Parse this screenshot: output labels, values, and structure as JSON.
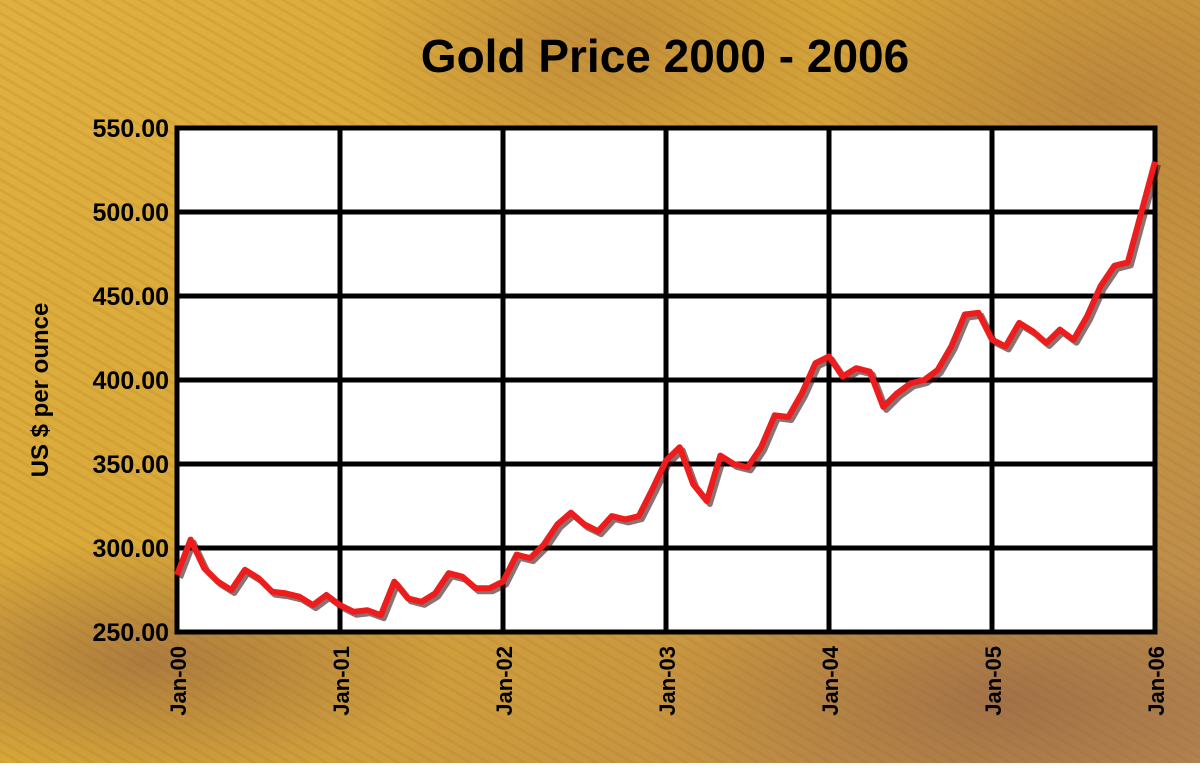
{
  "chart_data": {
    "type": "line",
    "title": "Gold Price 2000 - 2006",
    "y_label": "US $ per ounce",
    "categories": [
      "Jan-00",
      null,
      null,
      null,
      null,
      null,
      null,
      null,
      null,
      null,
      null,
      null,
      "Jan-01",
      null,
      null,
      null,
      null,
      null,
      null,
      null,
      null,
      null,
      null,
      null,
      "Jan-02",
      null,
      null,
      null,
      null,
      null,
      null,
      null,
      null,
      null,
      null,
      null,
      "Jan-03",
      null,
      null,
      null,
      null,
      null,
      null,
      null,
      null,
      null,
      null,
      null,
      "Jan-04",
      null,
      null,
      null,
      null,
      null,
      null,
      null,
      null,
      null,
      null,
      null,
      "Jan-05",
      null,
      null,
      null,
      null,
      null,
      null,
      null,
      null,
      null,
      null,
      null,
      "Jan-06"
    ],
    "series": [
      {
        "name": "Gold",
        "color": "#ee1c1c",
        "values": [
          284,
          305,
          288,
          280,
          275,
          287,
          282,
          274,
          273,
          271,
          266,
          272,
          266,
          262,
          263,
          260,
          280,
          270,
          268,
          273,
          285,
          283,
          276,
          276,
          280,
          296,
          294,
          302,
          314,
          321,
          314,
          310,
          319,
          317,
          319,
          335,
          352,
          360,
          338,
          328,
          355,
          350,
          348,
          360,
          379,
          378,
          392,
          410,
          414,
          402,
          407,
          405,
          384,
          392,
          398,
          400,
          406,
          420,
          439,
          440,
          424,
          420,
          434,
          429,
          422,
          430,
          424,
          438,
          456,
          468,
          470,
          500,
          530
        ]
      }
    ],
    "ylim": [
      250,
      550
    ],
    "yticks": [
      {
        "value": 250,
        "label": "250.00"
      },
      {
        "value": 300,
        "label": "300.00"
      },
      {
        "value": 350,
        "label": "350.00"
      },
      {
        "value": 400,
        "label": "400.00"
      },
      {
        "value": 450,
        "label": "450.00"
      },
      {
        "value": 500,
        "label": "500.00"
      },
      {
        "value": 550,
        "label": "550.00"
      }
    ],
    "grid": true
  }
}
